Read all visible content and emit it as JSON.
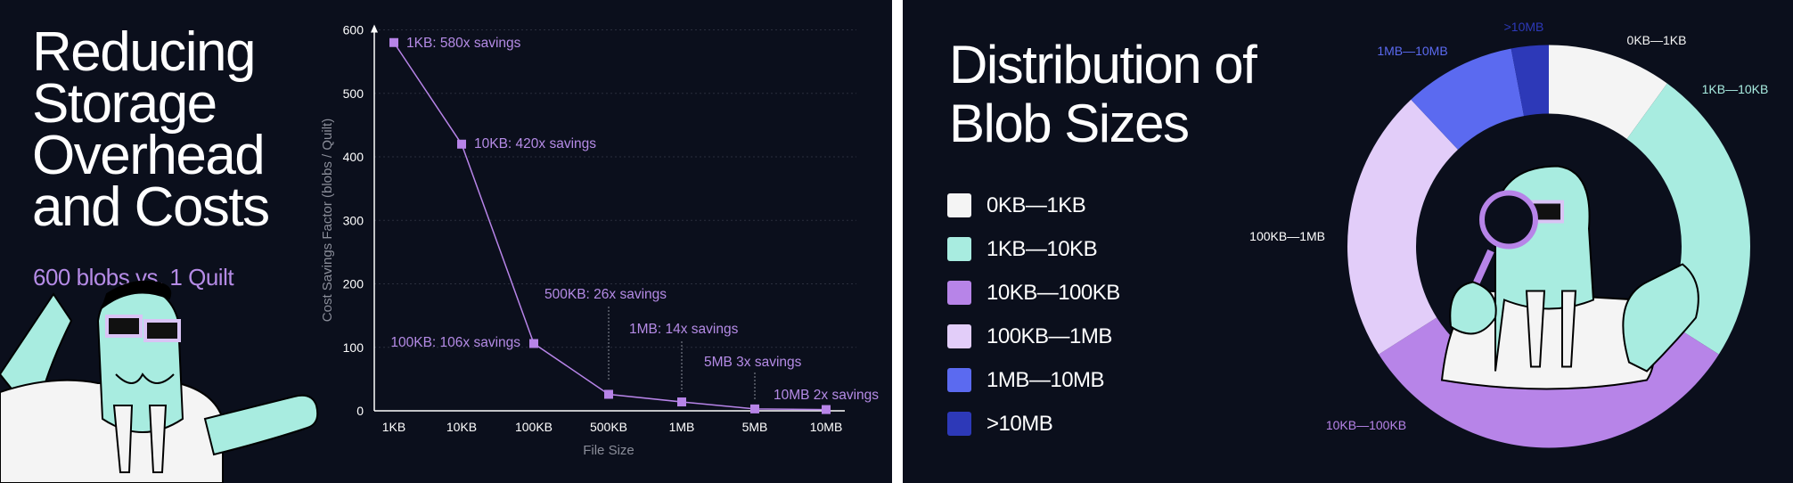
{
  "left_panel": {
    "title": "Reducing Storage Overhead and Costs",
    "subtitle": "600 blobs vs. 1 Quilt"
  },
  "right_panel": {
    "title": "Distribution of Blob Sizes"
  },
  "colors": {
    "background": "#0b0f1c",
    "accent": "#b784e8",
    "mint": "#a8ece0",
    "divider": "#ffffff"
  },
  "chart_data": [
    {
      "type": "line",
      "title": "",
      "xlabel": "File Size",
      "ylabel": "Cost Savings Factor (blobs / Quilt)",
      "categories": [
        "1KB",
        "10KB",
        "100KB",
        "500KB",
        "1MB",
        "5MB",
        "10MB"
      ],
      "values": [
        580,
        420,
        106,
        26,
        14,
        3,
        2
      ],
      "ylim": [
        0,
        600
      ],
      "yticks": [
        0,
        100,
        200,
        300,
        400,
        500,
        600
      ],
      "grid": true,
      "annotations": [
        "1KB: 580x savings",
        "10KB: 420x savings",
        "100KB:  106x savings",
        "500KB: 26x savings",
        "1MB: 14x savings",
        "5MB 3x savings",
        "10MB 2x savings"
      ],
      "series_color": "#b784e8"
    },
    {
      "type": "pie",
      "donut": true,
      "title": "Distribution of Blob Sizes",
      "legend_position": "left",
      "slices": [
        {
          "label": "0KB—1KB",
          "value": 10,
          "color": "#f4f4f4"
        },
        {
          "label": "1KB—10KB",
          "value": 24,
          "color": "#a8ece0"
        },
        {
          "label": "10KB—100KB",
          "value": 32,
          "color": "#b784e8"
        },
        {
          "label": "100KB—1MB",
          "value": 22,
          "color": "#e2cdf9"
        },
        {
          "label": "1MB—10MB",
          "value": 9,
          "color": "#5b6af0"
        },
        {
          "label": ">10MB",
          "value": 3,
          "color": "#2d39b8"
        }
      ]
    }
  ]
}
